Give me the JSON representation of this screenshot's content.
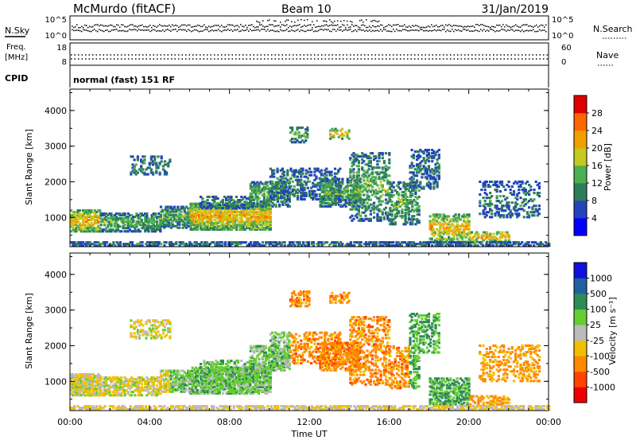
{
  "header": {
    "station": "McMurdo (fitACF)",
    "beam": "Beam 10",
    "date": "31/Jan/2019"
  },
  "top_panels": {
    "nsky_label": "N.Sky",
    "nsky_ticks": [
      "10^5",
      "10^0"
    ],
    "nsearch_label": "N.Search",
    "nsearch_ticks": [
      "10^5",
      "10^0"
    ],
    "freq_label_1": "Freq.",
    "freq_label_2": "[MHz]",
    "freq_ticks": [
      "18",
      "8"
    ],
    "nave_label": "Nave",
    "nave_ticks": [
      "60",
      "0"
    ],
    "cpid_label": "CPID",
    "cpid_value": "normal (fast) 151 RF"
  },
  "chart_data": [
    {
      "type": "heatmap",
      "name": "power-panel",
      "xlabel": "",
      "ylabel": "Slant Range [km]",
      "xlim": [
        0,
        24
      ],
      "ylim": [
        180,
        4600
      ],
      "yticks": [
        1000,
        2000,
        3000,
        4000
      ],
      "xticks": [
        "00:00",
        "04:00",
        "08:00",
        "12:00",
        "16:00",
        "20:00",
        "00:00"
      ],
      "colorbar": {
        "label": "Power [dB]",
        "ticks": [
          "4",
          "8",
          "12",
          "16",
          "20",
          "24",
          "28"
        ],
        "colors": [
          "#0000ff",
          "#2244bb",
          "#2e7d5a",
          "#4caf50",
          "#c7c820",
          "#f0a000",
          "#ff6600",
          "#dd0000"
        ]
      }
    },
    {
      "type": "heatmap",
      "name": "velocity-panel",
      "xlabel": "Time UT",
      "ylabel": "Slant Range [km]",
      "xlim": [
        0,
        24
      ],
      "ylim": [
        180,
        4600
      ],
      "yticks": [
        1000,
        2000,
        3000,
        4000
      ],
      "xticks": [
        "00:00",
        "04:00",
        "08:00",
        "12:00",
        "16:00",
        "20:00",
        "00:00"
      ],
      "colorbar": {
        "label": "Velocity [m s⁻¹]",
        "ticks": [
          "1000",
          "500",
          "100",
          "25",
          "-25",
          "-100",
          "-500",
          "-1000"
        ],
        "colors": [
          "#1010dd",
          "#2060a0",
          "#2e8b57",
          "#66cc33",
          "#bbbbbb",
          "#f0c000",
          "#ff8800",
          "#ff4400",
          "#ee0000"
        ]
      }
    }
  ]
}
